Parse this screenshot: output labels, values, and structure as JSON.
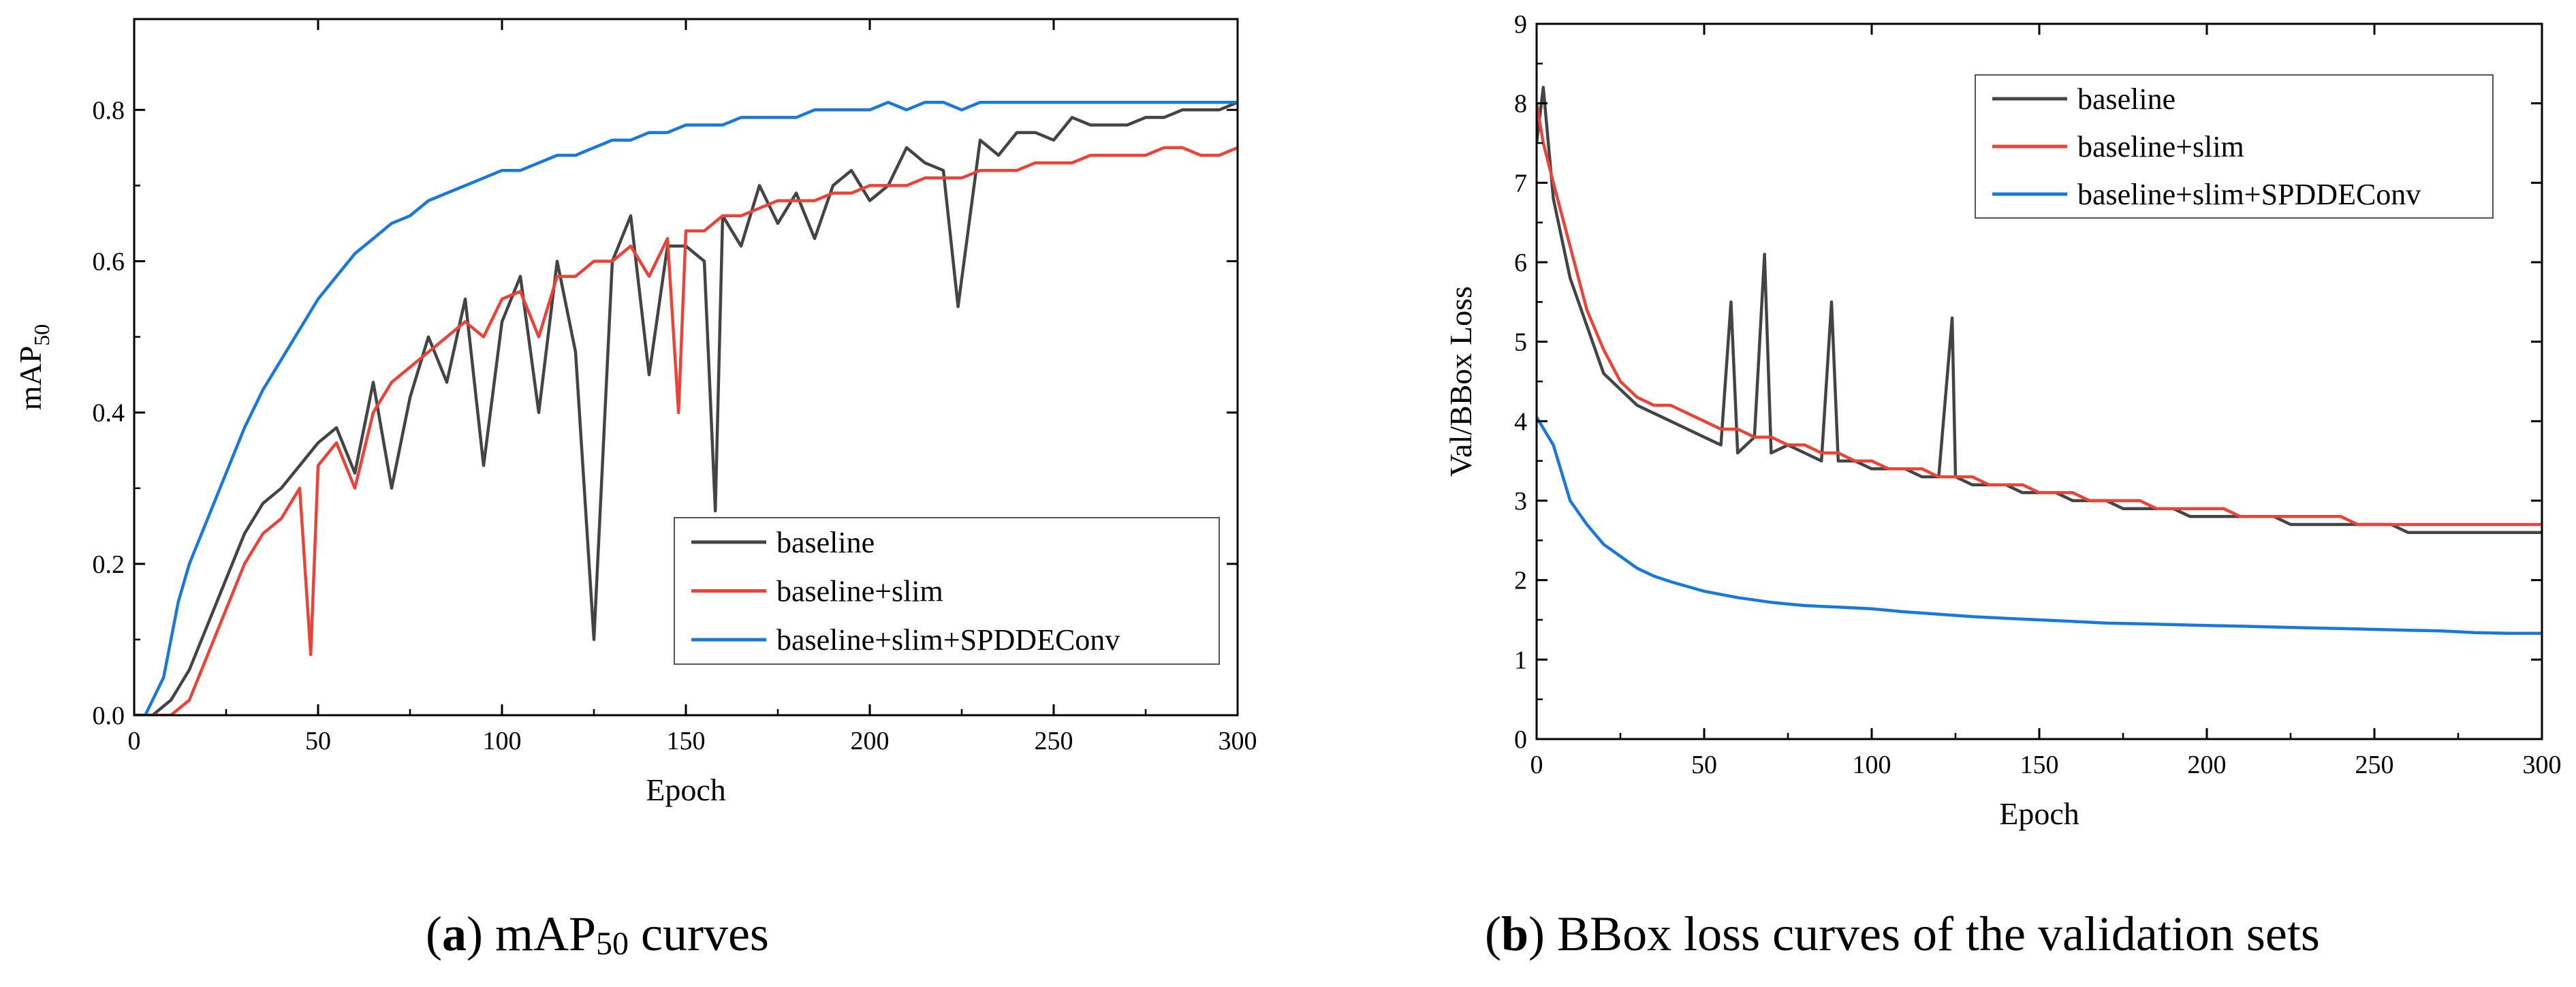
{
  "chart_data": [
    {
      "type": "line",
      "id": "a",
      "xlabel": "Epoch",
      "ylabel_main": "mAP",
      "ylabel_sub": "50",
      "xlim": [
        0,
        300
      ],
      "ylim": [
        0,
        0.92
      ],
      "xticks": [
        0,
        50,
        100,
        150,
        200,
        250,
        300
      ],
      "yticks": [
        0.0,
        0.2,
        0.4,
        0.6,
        0.8
      ],
      "ytick_labels": [
        "0.0",
        "0.2",
        "0.4",
        "0.6",
        "0.8"
      ],
      "legend_position": "lower-right",
      "series": [
        {
          "name": "baseline",
          "color": "#444444",
          "x": [
            0,
            5,
            10,
            15,
            20,
            25,
            30,
            35,
            40,
            45,
            50,
            55,
            60,
            65,
            70,
            75,
            80,
            85,
            90,
            95,
            100,
            105,
            110,
            115,
            120,
            125,
            130,
            135,
            140,
            145,
            150,
            155,
            158,
            160,
            165,
            170,
            175,
            180,
            185,
            190,
            195,
            200,
            205,
            210,
            215,
            220,
            224,
            230,
            235,
            240,
            245,
            250,
            255,
            260,
            265,
            270,
            275,
            280,
            285,
            290,
            295,
            300
          ],
          "y": [
            0,
            0,
            0.02,
            0.06,
            0.12,
            0.18,
            0.24,
            0.28,
            0.3,
            0.33,
            0.36,
            0.38,
            0.32,
            0.44,
            0.3,
            0.42,
            0.5,
            0.44,
            0.55,
            0.33,
            0.52,
            0.58,
            0.4,
            0.6,
            0.48,
            0.1,
            0.6,
            0.66,
            0.45,
            0.62,
            0.62,
            0.6,
            0.27,
            0.66,
            0.62,
            0.7,
            0.65,
            0.69,
            0.63,
            0.7,
            0.72,
            0.68,
            0.7,
            0.75,
            0.73,
            0.72,
            0.54,
            0.76,
            0.74,
            0.77,
            0.77,
            0.76,
            0.79,
            0.78,
            0.78,
            0.78,
            0.79,
            0.79,
            0.8,
            0.8,
            0.8,
            0.81
          ]
        },
        {
          "name": "baseline+slim",
          "color": "#e8443a",
          "x": [
            0,
            5,
            10,
            15,
            20,
            25,
            30,
            35,
            40,
            45,
            48,
            50,
            55,
            60,
            65,
            70,
            75,
            80,
            85,
            90,
            95,
            100,
            105,
            110,
            115,
            120,
            125,
            130,
            135,
            140,
            145,
            148,
            150,
            155,
            160,
            165,
            170,
            175,
            180,
            185,
            190,
            195,
            200,
            205,
            210,
            215,
            220,
            225,
            230,
            235,
            240,
            245,
            250,
            255,
            260,
            265,
            270,
            275,
            280,
            285,
            290,
            295,
            300
          ],
          "y": [
            0,
            0,
            0,
            0.02,
            0.08,
            0.14,
            0.2,
            0.24,
            0.26,
            0.3,
            0.08,
            0.33,
            0.36,
            0.3,
            0.4,
            0.44,
            0.46,
            0.48,
            0.5,
            0.52,
            0.5,
            0.55,
            0.56,
            0.5,
            0.58,
            0.58,
            0.6,
            0.6,
            0.62,
            0.58,
            0.63,
            0.4,
            0.64,
            0.64,
            0.66,
            0.66,
            0.67,
            0.68,
            0.68,
            0.68,
            0.69,
            0.69,
            0.7,
            0.7,
            0.7,
            0.71,
            0.71,
            0.71,
            0.72,
            0.72,
            0.72,
            0.73,
            0.73,
            0.73,
            0.74,
            0.74,
            0.74,
            0.74,
            0.75,
            0.75,
            0.74,
            0.74,
            0.75
          ]
        },
        {
          "name": "baseline+slim+SPDDEConv",
          "color": "#1a78d8",
          "x": [
            0,
            3,
            5,
            8,
            10,
            12,
            15,
            20,
            25,
            30,
            35,
            40,
            45,
            50,
            55,
            60,
            65,
            70,
            75,
            80,
            85,
            90,
            95,
            100,
            105,
            110,
            115,
            120,
            125,
            130,
            135,
            140,
            145,
            150,
            155,
            160,
            165,
            170,
            175,
            180,
            185,
            190,
            195,
            200,
            205,
            210,
            215,
            220,
            225,
            230,
            235,
            240,
            245,
            250,
            255,
            260,
            265,
            270,
            275,
            280,
            285,
            290,
            295,
            300
          ],
          "y": [
            0,
            0,
            0.02,
            0.05,
            0.1,
            0.15,
            0.2,
            0.26,
            0.32,
            0.38,
            0.43,
            0.47,
            0.51,
            0.55,
            0.58,
            0.61,
            0.63,
            0.65,
            0.66,
            0.68,
            0.69,
            0.7,
            0.71,
            0.72,
            0.72,
            0.73,
            0.74,
            0.74,
            0.75,
            0.76,
            0.76,
            0.77,
            0.77,
            0.78,
            0.78,
            0.78,
            0.79,
            0.79,
            0.79,
            0.79,
            0.8,
            0.8,
            0.8,
            0.8,
            0.81,
            0.8,
            0.81,
            0.81,
            0.8,
            0.81,
            0.81,
            0.81,
            0.81,
            0.81,
            0.81,
            0.81,
            0.81,
            0.81,
            0.81,
            0.81,
            0.81,
            0.81,
            0.81,
            0.81
          ]
        }
      ]
    },
    {
      "type": "line",
      "id": "b",
      "xlabel": "Epoch",
      "ylabel": "Val/BBox Loss",
      "xlim": [
        0,
        300
      ],
      "ylim": [
        0,
        9
      ],
      "xticks": [
        0,
        50,
        100,
        150,
        200,
        250,
        300
      ],
      "yticks": [
        0,
        1,
        2,
        3,
        4,
        5,
        6,
        7,
        8,
        9
      ],
      "ytick_labels": [
        "0",
        "1",
        "2",
        "3",
        "4",
        "5",
        "6",
        "7",
        "8",
        "9"
      ],
      "legend_position": "top-right",
      "series": [
        {
          "name": "baseline",
          "color": "#444444",
          "x": [
            0,
            2,
            5,
            10,
            15,
            20,
            25,
            30,
            35,
            40,
            45,
            50,
            55,
            58,
            60,
            65,
            68,
            70,
            75,
            80,
            85,
            88,
            90,
            95,
            100,
            105,
            110,
            115,
            120,
            124,
            125,
            130,
            135,
            140,
            145,
            150,
            155,
            160,
            165,
            170,
            175,
            180,
            185,
            190,
            195,
            200,
            205,
            210,
            215,
            220,
            225,
            230,
            235,
            240,
            245,
            250,
            255,
            260,
            265,
            270,
            275,
            280,
            285,
            290,
            295,
            300
          ],
          "y": [
            7.5,
            8.2,
            6.8,
            5.8,
            5.2,
            4.6,
            4.4,
            4.2,
            4.1,
            4.0,
            3.9,
            3.8,
            3.7,
            5.5,
            3.6,
            3.8,
            6.1,
            3.6,
            3.7,
            3.6,
            3.5,
            5.5,
            3.5,
            3.5,
            3.4,
            3.4,
            3.4,
            3.3,
            3.3,
            5.3,
            3.3,
            3.2,
            3.2,
            3.2,
            3.1,
            3.1,
            3.1,
            3.0,
            3.0,
            3.0,
            2.9,
            2.9,
            2.9,
            2.9,
            2.8,
            2.8,
            2.8,
            2.8,
            2.8,
            2.8,
            2.7,
            2.7,
            2.7,
            2.7,
            2.7,
            2.7,
            2.7,
            2.6,
            2.6,
            2.6,
            2.6,
            2.6,
            2.6,
            2.6,
            2.6,
            2.6
          ]
        },
        {
          "name": "baseline+slim",
          "color": "#e8443a",
          "x": [
            0,
            2,
            5,
            10,
            15,
            20,
            25,
            30,
            35,
            40,
            45,
            50,
            55,
            60,
            65,
            70,
            75,
            80,
            85,
            90,
            95,
            100,
            105,
            110,
            115,
            120,
            125,
            130,
            135,
            140,
            145,
            150,
            155,
            160,
            165,
            170,
            175,
            180,
            185,
            190,
            195,
            200,
            205,
            210,
            215,
            220,
            225,
            230,
            235,
            240,
            245,
            250,
            255,
            260,
            265,
            270,
            275,
            280,
            285,
            290,
            295,
            300
          ],
          "y": [
            8.0,
            7.5,
            7.0,
            6.2,
            5.4,
            4.9,
            4.5,
            4.3,
            4.2,
            4.2,
            4.1,
            4.0,
            3.9,
            3.9,
            3.8,
            3.8,
            3.7,
            3.7,
            3.6,
            3.6,
            3.5,
            3.5,
            3.4,
            3.4,
            3.4,
            3.3,
            3.3,
            3.3,
            3.2,
            3.2,
            3.2,
            3.1,
            3.1,
            3.1,
            3.0,
            3.0,
            3.0,
            3.0,
            2.9,
            2.9,
            2.9,
            2.9,
            2.9,
            2.8,
            2.8,
            2.8,
            2.8,
            2.8,
            2.8,
            2.8,
            2.7,
            2.7,
            2.7,
            2.7,
            2.7,
            2.7,
            2.7,
            2.7,
            2.7,
            2.7,
            2.7,
            2.7
          ]
        },
        {
          "name": "baseline+slim+SPDDEConv",
          "color": "#1a78d8",
          "x": [
            0,
            5,
            10,
            15,
            20,
            25,
            30,
            35,
            40,
            45,
            50,
            55,
            60,
            65,
            70,
            75,
            80,
            85,
            90,
            95,
            100,
            110,
            120,
            130,
            140,
            150,
            160,
            170,
            180,
            190,
            200,
            210,
            220,
            230,
            240,
            250,
            260,
            270,
            280,
            290,
            300
          ],
          "y": [
            4.05,
            3.7,
            3.0,
            2.7,
            2.45,
            2.3,
            2.15,
            2.05,
            1.98,
            1.92,
            1.86,
            1.82,
            1.78,
            1.75,
            1.72,
            1.7,
            1.68,
            1.67,
            1.66,
            1.65,
            1.64,
            1.6,
            1.57,
            1.54,
            1.52,
            1.5,
            1.48,
            1.46,
            1.45,
            1.44,
            1.43,
            1.42,
            1.41,
            1.4,
            1.39,
            1.38,
            1.37,
            1.36,
            1.34,
            1.33,
            1.33
          ]
        }
      ]
    }
  ],
  "captions": {
    "a": {
      "letter": "a",
      "before": "mAP",
      "sub": "50",
      "after": " curves"
    },
    "b": {
      "letter": "b",
      "text": " BBox loss curves of the validation sets"
    }
  }
}
